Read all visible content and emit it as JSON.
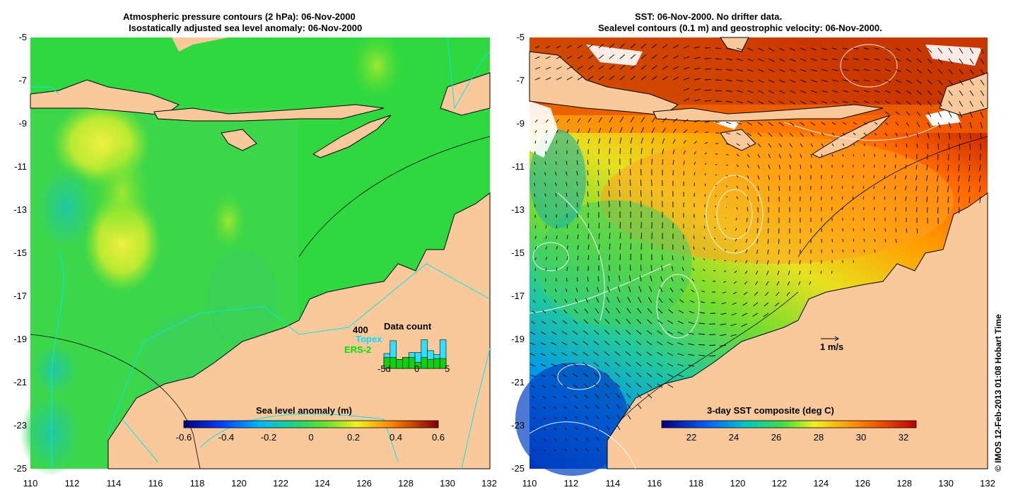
{
  "left_panel": {
    "title_line1": "Atmospheric pressure contours (2 hPa): 06-Nov-2000",
    "title_line2": "Isostatically adjusted sea level anomaly: 06-Nov-2000",
    "colorbar_title": "Sea level anomaly (m)",
    "colorbar_ticks": [
      "-0.6",
      "-0.4",
      "-0.2",
      "0",
      "0.2",
      "0.4",
      "0.6"
    ],
    "x_ticks": [
      "110",
      "112",
      "114",
      "116",
      "118",
      "120",
      "122",
      "124",
      "126",
      "128",
      "130",
      "132"
    ],
    "y_ticks": [
      "-5",
      "-7",
      "-9",
      "-11",
      "-13",
      "-15",
      "-17",
      "-19",
      "-21",
      "-23",
      "-25"
    ],
    "histogram": {
      "max_label": "400",
      "title": "Data count",
      "series1": "Topex",
      "series2": "ERS-2",
      "x_labels": [
        "-5d",
        "0",
        "5"
      ],
      "topex_values": [
        0.2,
        0.85,
        0.0,
        0.0,
        0.25,
        0.5,
        0.9,
        0.45,
        0.2,
        0.95
      ],
      "ers_values": [
        0.55,
        0.55,
        0.45,
        0.55,
        0.55,
        0.3,
        0.55,
        0.45,
        0.5,
        0.5
      ]
    },
    "colors": {
      "land": "#f9c89b",
      "water": "#30e030",
      "coast": "#000000",
      "bathy": "#00e8e8"
    }
  },
  "right_panel": {
    "title_line1": "SST: 06-Nov-2000. No drifter data.",
    "title_line2": "Sealevel contours (0.1 m) and geostrophic velocity: 06-Nov-2000.",
    "colorbar_title": "3-day SST composite (deg C)",
    "colorbar_ticks": [
      "22",
      "24",
      "26",
      "28",
      "30",
      "32"
    ],
    "x_ticks": [
      "110",
      "112",
      "114",
      "116",
      "118",
      "120",
      "122",
      "124",
      "126",
      "128",
      "130",
      "132"
    ],
    "y_ticks": [
      "-5",
      "-7",
      "-9",
      "-11",
      "-13",
      "-15",
      "-17",
      "-19",
      "-21",
      "-23",
      "-25"
    ],
    "velocity_scale_label": "1 m/s",
    "colors": {
      "land": "#f9c89b",
      "coast": "#000000"
    }
  },
  "copyright": "© IMOS 12-Feb-2013 01:08 Hobart Time"
}
